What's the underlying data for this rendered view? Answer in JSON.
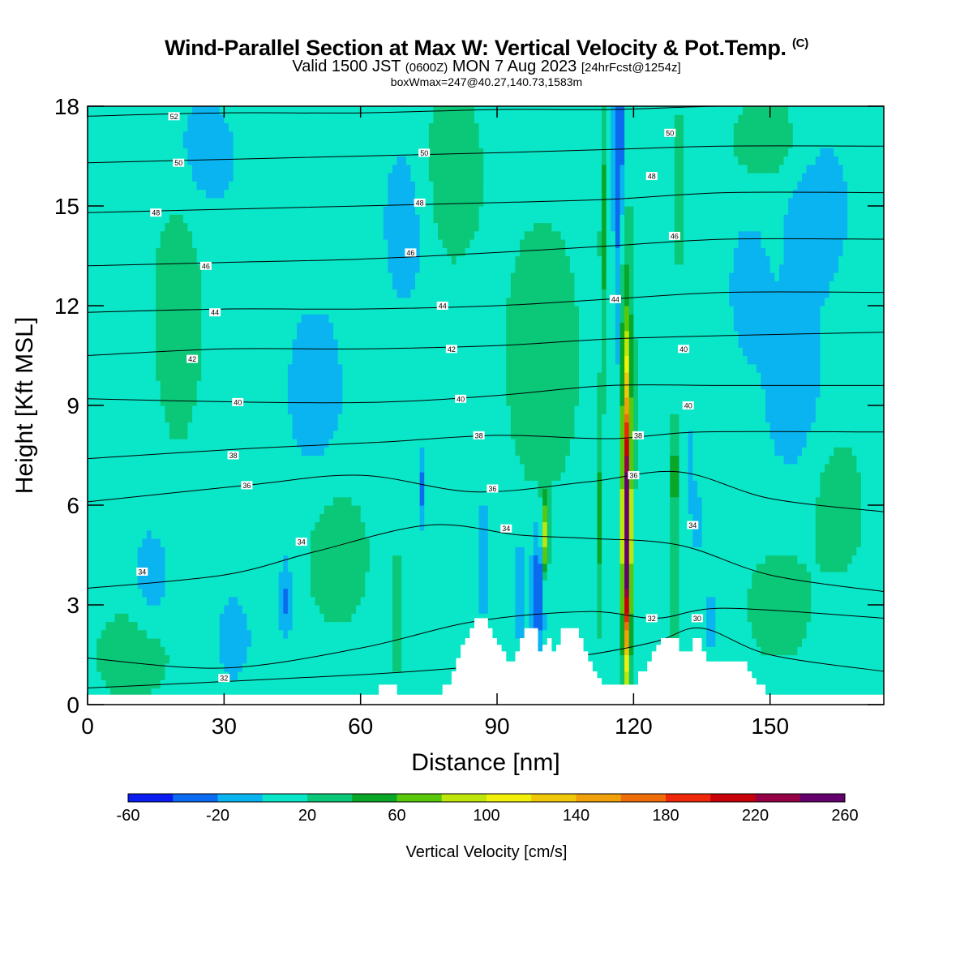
{
  "header": {
    "title": "Wind-Parallel Section at Max W: Vertical Velocity & Pot.Temp.",
    "copyright": "(C)",
    "valid_prefix": "Valid 1500 JST",
    "utc": "(0600Z)",
    "valid_date": "MON 7 Aug 2023",
    "forecast": "[24hrFcst@1254z]",
    "boxinfo": "boxWmax=247@40.27,140.73,1583m"
  },
  "chart_data": {
    "type": "heatmap",
    "xlabel": "Distance [nm]",
    "ylabel": "Height [Kft MSL]",
    "xlim": [
      0,
      175
    ],
    "ylim": [
      0,
      18
    ],
    "xticks": [
      0,
      30,
      60,
      90,
      120,
      150
    ],
    "yticks": [
      0,
      3,
      6,
      9,
      12,
      15,
      18
    ],
    "colorbar": {
      "label": "Vertical Velocity [cm/s]",
      "tick_labels": [
        -60,
        -20,
        20,
        60,
        100,
        140,
        180,
        220,
        260
      ],
      "bounds": [
        -60,
        -40,
        -20,
        0,
        20,
        40,
        60,
        80,
        100,
        120,
        140,
        160,
        180,
        200,
        220,
        240,
        260
      ],
      "colors": [
        "#0a1cf0",
        "#0a6af0",
        "#0ab4f0",
        "#0ae6c8",
        "#0ac878",
        "#0aa628",
        "#5ac80a",
        "#bee60a",
        "#f0f00a",
        "#f0c80a",
        "#f0a00a",
        "#f06e0a",
        "#f0280a",
        "#c8000a",
        "#960046",
        "#64006e"
      ]
    },
    "background_w": 10,
    "terrain_profile": [
      [
        0,
        0.3
      ],
      [
        64,
        0.3
      ],
      [
        64,
        0.6
      ],
      [
        68,
        0.6
      ],
      [
        68,
        0.3
      ],
      [
        78,
        0.3
      ],
      [
        78,
        0.6
      ],
      [
        80,
        0.6
      ],
      [
        80,
        1.0
      ],
      [
        81,
        1.0
      ],
      [
        81,
        1.4
      ],
      [
        82,
        1.4
      ],
      [
        82,
        1.8
      ],
      [
        83,
        1.8
      ],
      [
        83,
        2.0
      ],
      [
        84,
        2.0
      ],
      [
        84,
        2.3
      ],
      [
        85,
        2.3
      ],
      [
        85,
        2.6
      ],
      [
        87,
        2.6
      ],
      [
        87,
        2.6
      ],
      [
        88,
        2.6
      ],
      [
        88,
        2.3
      ],
      [
        89,
        2.3
      ],
      [
        89,
        2.0
      ],
      [
        90,
        2.0
      ],
      [
        90,
        1.8
      ],
      [
        91,
        1.8
      ],
      [
        91,
        1.6
      ],
      [
        92,
        1.6
      ],
      [
        92,
        1.3
      ],
      [
        94,
        1.3
      ],
      [
        94,
        1.6
      ],
      [
        95,
        1.6
      ],
      [
        95,
        2.0
      ],
      [
        96,
        2.0
      ],
      [
        96,
        2.3
      ],
      [
        99,
        2.3
      ],
      [
        99,
        1.6
      ],
      [
        100,
        1.6
      ],
      [
        100,
        1.8
      ],
      [
        101,
        1.8
      ],
      [
        101,
        2.0
      ],
      [
        102,
        2.0
      ],
      [
        102,
        1.6
      ],
      [
        103,
        1.6
      ],
      [
        103,
        1.8
      ],
      [
        104,
        1.8
      ],
      [
        104,
        2.3
      ],
      [
        108,
        2.3
      ],
      [
        108,
        2.0
      ],
      [
        109,
        2.0
      ],
      [
        109,
        1.6
      ],
      [
        110,
        1.6
      ],
      [
        110,
        1.3
      ],
      [
        111,
        1.3
      ],
      [
        111,
        1.0
      ],
      [
        112,
        1.0
      ],
      [
        112,
        0.8
      ],
      [
        113,
        0.8
      ],
      [
        113,
        0.6
      ],
      [
        116,
        0.6
      ],
      [
        116,
        0.6
      ],
      [
        118,
        0.6
      ],
      [
        118,
        0.6
      ],
      [
        121,
        0.6
      ],
      [
        121,
        1.0
      ],
      [
        123,
        1.0
      ],
      [
        123,
        1.3
      ],
      [
        124,
        1.3
      ],
      [
        124,
        1.6
      ],
      [
        125,
        1.6
      ],
      [
        125,
        1.8
      ],
      [
        126,
        1.8
      ],
      [
        126,
        2.0
      ],
      [
        130,
        2.0
      ],
      [
        130,
        1.6
      ],
      [
        133,
        1.6
      ],
      [
        133,
        2.0
      ],
      [
        135,
        2.0
      ],
      [
        135,
        1.6
      ],
      [
        136,
        1.6
      ],
      [
        136,
        1.3
      ],
      [
        145,
        1.3
      ],
      [
        145,
        1.0
      ],
      [
        146,
        1.0
      ],
      [
        146,
        0.8
      ],
      [
        147,
        0.8
      ],
      [
        147,
        0.6
      ],
      [
        149,
        0.6
      ],
      [
        149,
        0.3
      ],
      [
        175,
        0.3
      ]
    ],
    "w_features": [
      {
        "x": 118.5,
        "y": 5.5,
        "sx": 0.55,
        "sy": 3.0,
        "w": 190
      },
      {
        "x": 118.5,
        "y": 4.0,
        "sx": 0.7,
        "sy": 2.0,
        "w": 60
      },
      {
        "x": 118.5,
        "y": 9.0,
        "sx": 1.2,
        "sy": 4.0,
        "w": 45
      },
      {
        "x": 117.0,
        "y": 17.0,
        "sx": 0.9,
        "sy": 2.0,
        "w": -45
      },
      {
        "x": 116.3,
        "y": 12.5,
        "sx": 0.5,
        "sy": 3.0,
        "w": -30
      },
      {
        "x": 113.5,
        "y": 14.5,
        "sx": 0.6,
        "sy": 3.0,
        "w": 35
      },
      {
        "x": 112.5,
        "y": 5.5,
        "sx": 0.6,
        "sy": 2.2,
        "w": 35
      },
      {
        "x": 100.5,
        "y": 5.0,
        "sx": 0.55,
        "sy": 0.9,
        "w": 80
      },
      {
        "x": 99.0,
        "y": 3.5,
        "sx": 1.0,
        "sy": 1.3,
        "w": -55
      },
      {
        "x": 95.0,
        "y": 3.5,
        "sx": 0.6,
        "sy": 1.2,
        "w": -30
      },
      {
        "x": 87.0,
        "y": 4.5,
        "sx": 1.0,
        "sy": 1.2,
        "w": -30
      },
      {
        "x": 73.5,
        "y": 6.5,
        "sx": 0.6,
        "sy": 0.8,
        "w": -35
      },
      {
        "x": 68.0,
        "y": 2.8,
        "sx": 0.7,
        "sy": 1.2,
        "w": 35
      },
      {
        "x": 43.5,
        "y": 3.2,
        "sx": 1.0,
        "sy": 0.8,
        "w": -35
      },
      {
        "x": 129.0,
        "y": 3.5,
        "sx": 0.6,
        "sy": 1.5,
        "w": 30
      },
      {
        "x": 129.0,
        "y": 7.0,
        "sx": 0.6,
        "sy": 1.2,
        "w": 45
      },
      {
        "x": 130.0,
        "y": 15.5,
        "sx": 0.5,
        "sy": 2.0,
        "w": 30
      },
      {
        "x": 132.5,
        "y": 7.0,
        "sx": 0.6,
        "sy": 1.0,
        "w": -25
      },
      {
        "x": 134.0,
        "y": 5.5,
        "sx": 0.5,
        "sy": 0.8,
        "w": -25
      },
      {
        "x": 137.0,
        "y": 2.5,
        "sx": 0.6,
        "sy": 0.8,
        "w": -20
      },
      {
        "x": 14.0,
        "y": 3.8,
        "sx": 3.0,
        "sy": 1.2,
        "w": -20
      },
      {
        "x": 32.0,
        "y": 2.0,
        "sx": 3.0,
        "sy": 1.0,
        "w": -20
      },
      {
        "x": 50.0,
        "y": 9.5,
        "sx": 5.0,
        "sy": 2.0,
        "w": -20
      },
      {
        "x": 155.0,
        "y": 9.5,
        "sx": 5.0,
        "sy": 2.0,
        "w": -20
      },
      {
        "x": 160.0,
        "y": 15.0,
        "sx": 6.0,
        "sy": 2.0,
        "w": -20
      },
      {
        "x": 25.0,
        "y": 16.5,
        "sx": 6.0,
        "sy": 1.5,
        "w": -20
      },
      {
        "x": 70.0,
        "y": 14.5,
        "sx": 4.0,
        "sy": 2.0,
        "w": -20
      },
      {
        "x": 145.0,
        "y": 12.5,
        "sx": 3.0,
        "sy": 1.5,
        "w": -20
      },
      {
        "x": 165.0,
        "y": 6.0,
        "sx": 4.0,
        "sy": 1.5,
        "w": 25
      },
      {
        "x": 152.0,
        "y": 3.0,
        "sx": 5.0,
        "sy": 1.2,
        "w": 25
      },
      {
        "x": 10.0,
        "y": 1.5,
        "sx": 6.0,
        "sy": 1.0,
        "w": 25
      },
      {
        "x": 55.0,
        "y": 4.5,
        "sx": 5.0,
        "sy": 1.5,
        "w": 25
      },
      {
        "x": 20.0,
        "y": 12.0,
        "sx": 4.0,
        "sy": 3.0,
        "w": 25
      },
      {
        "x": 100.0,
        "y": 10.5,
        "sx": 6.0,
        "sy": 3.0,
        "w": 25
      },
      {
        "x": 80.0,
        "y": 16.0,
        "sx": 5.0,
        "sy": 2.0,
        "w": 25
      },
      {
        "x": 150.0,
        "y": 17.0,
        "sx": 6.0,
        "sy": 1.0,
        "w": 25
      }
    ],
    "isentropes": [
      {
        "theta": 30,
        "pts": [
          [
            0,
            0.5
          ],
          [
            60,
            0.9
          ],
          [
            90,
            1.2
          ],
          [
            110,
            1.5
          ],
          [
            125,
            1.9
          ],
          [
            135,
            2.3
          ],
          [
            150,
            1.5
          ],
          [
            175,
            1.0
          ]
        ]
      },
      {
        "theta": 32,
        "pts": [
          [
            0,
            1.4
          ],
          [
            30,
            1.1
          ],
          [
            60,
            1.7
          ],
          [
            85,
            2.5
          ],
          [
            110,
            2.8
          ],
          [
            125,
            2.6
          ],
          [
            140,
            2.9
          ],
          [
            175,
            2.6
          ]
        ]
      },
      {
        "theta": 34,
        "pts": [
          [
            0,
            3.5
          ],
          [
            30,
            3.9
          ],
          [
            50,
            4.6
          ],
          [
            75,
            5.4
          ],
          [
            95,
            5.1
          ],
          [
            110,
            5.0
          ],
          [
            130,
            4.8
          ],
          [
            150,
            3.9
          ],
          [
            175,
            3.4
          ]
        ]
      },
      {
        "theta": 36,
        "pts": [
          [
            0,
            6.1
          ],
          [
            35,
            6.6
          ],
          [
            60,
            6.9
          ],
          [
            85,
            6.4
          ],
          [
            110,
            6.7
          ],
          [
            130,
            7.0
          ],
          [
            150,
            6.2
          ],
          [
            175,
            5.8
          ]
        ]
      },
      {
        "theta": 38,
        "pts": [
          [
            0,
            7.4
          ],
          [
            35,
            7.7
          ],
          [
            65,
            7.9
          ],
          [
            90,
            8.1
          ],
          [
            115,
            8.0
          ],
          [
            135,
            8.2
          ],
          [
            175,
            8.2
          ]
        ]
      },
      {
        "theta": 40,
        "pts": [
          [
            0,
            9.2
          ],
          [
            35,
            9.1
          ],
          [
            65,
            9.1
          ],
          [
            90,
            9.3
          ],
          [
            115,
            9.6
          ],
          [
            140,
            9.6
          ],
          [
            175,
            9.6
          ]
        ]
      },
      {
        "theta": 42,
        "pts": [
          [
            0,
            10.5
          ],
          [
            30,
            10.7
          ],
          [
            60,
            10.7
          ],
          [
            90,
            10.8
          ],
          [
            115,
            11.0
          ],
          [
            140,
            11.1
          ],
          [
            175,
            11.2
          ]
        ]
      },
      {
        "theta": 44,
        "pts": [
          [
            0,
            11.8
          ],
          [
            30,
            11.9
          ],
          [
            60,
            11.9
          ],
          [
            90,
            12.0
          ],
          [
            115,
            12.2
          ],
          [
            140,
            12.4
          ],
          [
            175,
            12.4
          ]
        ]
      },
      {
        "theta": 46,
        "pts": [
          [
            0,
            13.2
          ],
          [
            30,
            13.3
          ],
          [
            60,
            13.4
          ],
          [
            90,
            13.6
          ],
          [
            115,
            13.8
          ],
          [
            140,
            14.0
          ],
          [
            175,
            14.0
          ]
        ]
      },
      {
        "theta": 48,
        "pts": [
          [
            0,
            14.8
          ],
          [
            30,
            14.9
          ],
          [
            60,
            15.0
          ],
          [
            90,
            15.1
          ],
          [
            115,
            15.2
          ],
          [
            140,
            15.4
          ],
          [
            175,
            15.4
          ]
        ]
      },
      {
        "theta": 50,
        "pts": [
          [
            0,
            16.3
          ],
          [
            30,
            16.4
          ],
          [
            60,
            16.5
          ],
          [
            90,
            16.6
          ],
          [
            115,
            16.7
          ],
          [
            140,
            16.8
          ],
          [
            175,
            16.8
          ]
        ]
      },
      {
        "theta": 52,
        "pts": [
          [
            0,
            17.7
          ],
          [
            30,
            17.8
          ],
          [
            60,
            17.8
          ],
          [
            90,
            17.9
          ],
          [
            115,
            17.9
          ],
          [
            140,
            18.0
          ],
          [
            175,
            18.0
          ]
        ]
      }
    ],
    "contour_labels": [
      {
        "text": "52",
        "x": 19,
        "y": 17.7
      },
      {
        "text": "50",
        "x": 20,
        "y": 16.3
      },
      {
        "text": "50",
        "x": 74,
        "y": 16.6
      },
      {
        "text": "50",
        "x": 128,
        "y": 17.2
      },
      {
        "text": "48",
        "x": 15,
        "y": 14.8
      },
      {
        "text": "48",
        "x": 73,
        "y": 15.1
      },
      {
        "text": "48",
        "x": 124,
        "y": 15.9
      },
      {
        "text": "46",
        "x": 26,
        "y": 13.2
      },
      {
        "text": "46",
        "x": 71,
        "y": 13.6
      },
      {
        "text": "46",
        "x": 129,
        "y": 14.1
      },
      {
        "text": "44",
        "x": 28,
        "y": 11.8
      },
      {
        "text": "44",
        "x": 78,
        "y": 12.0
      },
      {
        "text": "44",
        "x": 116,
        "y": 12.2
      },
      {
        "text": "42",
        "x": 23,
        "y": 10.4
      },
      {
        "text": "42",
        "x": 80,
        "y": 10.7
      },
      {
        "text": "40",
        "x": 131,
        "y": 10.7
      },
      {
        "text": "40",
        "x": 33,
        "y": 9.1
      },
      {
        "text": "40",
        "x": 82,
        "y": 9.2
      },
      {
        "text": "40",
        "x": 132,
        "y": 9.0
      },
      {
        "text": "38",
        "x": 86,
        "y": 8.1
      },
      {
        "text": "38",
        "x": 121,
        "y": 8.1
      },
      {
        "text": "38",
        "x": 32,
        "y": 7.5
      },
      {
        "text": "36",
        "x": 35,
        "y": 6.6
      },
      {
        "text": "36",
        "x": 89,
        "y": 6.5
      },
      {
        "text": "36",
        "x": 120,
        "y": 6.9
      },
      {
        "text": "34",
        "x": 92,
        "y": 5.3
      },
      {
        "text": "34",
        "x": 133,
        "y": 5.4
      },
      {
        "text": "34",
        "x": 47,
        "y": 4.9
      },
      {
        "text": "34",
        "x": 12,
        "y": 4.0
      },
      {
        "text": "32",
        "x": 124,
        "y": 2.6
      },
      {
        "text": "30",
        "x": 134,
        "y": 2.6
      },
      {
        "text": "32",
        "x": 30,
        "y": 0.8
      }
    ]
  }
}
